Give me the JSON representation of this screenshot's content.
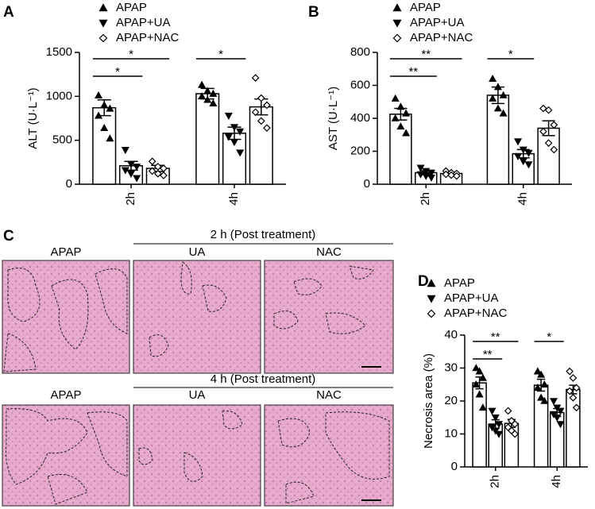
{
  "chart_data": [
    {
      "type": "bar",
      "panel": "A",
      "ylabel": "ALT (U·L⁻¹)",
      "categories": [
        "2h",
        "4h"
      ],
      "ylim": [
        0,
        1500
      ],
      "yticks": [
        0,
        500,
        1000,
        1500
      ],
      "color": "#000000",
      "series": [
        {
          "name": "APAP",
          "marker": "triangle-up",
          "values": [
            870,
            1030
          ],
          "errors": [
            90,
            60
          ],
          "points": [
            [
              1010,
              900,
              860,
              780,
              640,
              520
            ],
            [
              1130,
              1060,
              1030,
              1000,
              960,
              920
            ]
          ]
        },
        {
          "name": "APAP+UA",
          "marker": "triangle-down",
          "values": [
            210,
            580
          ],
          "errors": [
            50,
            70
          ],
          "points": [
            [
              390,
              230,
              200,
              160,
              120,
              70
            ],
            [
              780,
              650,
              600,
              540,
              480,
              360
            ]
          ]
        },
        {
          "name": "APAP+NAC",
          "marker": "diamond-open",
          "values": [
            180,
            880
          ],
          "errors": [
            35,
            90
          ],
          "points": [
            [
              260,
              200,
              180,
              150,
              120,
              100
            ],
            [
              1210,
              980,
              900,
              820,
              720,
              640
            ]
          ]
        }
      ],
      "significance": [
        {
          "category": 0,
          "series": [
            0,
            1
          ],
          "label": "*"
        },
        {
          "category": 0,
          "series": [
            0,
            2
          ],
          "label": "*"
        },
        {
          "category": 1,
          "series": [
            0,
            1
          ],
          "label": "*"
        }
      ]
    },
    {
      "type": "bar",
      "panel": "B",
      "ylabel": "AST (U·L⁻¹)",
      "categories": [
        "2h",
        "4h"
      ],
      "ylim": [
        0,
        800
      ],
      "yticks": [
        0,
        200,
        400,
        600,
        800
      ],
      "color": "#000000",
      "series": [
        {
          "name": "APAP",
          "marker": "triangle-up",
          "values": [
            425,
            540
          ],
          "errors": [
            35,
            50
          ],
          "points": [
            [
              520,
              470,
              430,
              400,
              350,
              310
            ],
            [
              640,
              590,
              540,
              520,
              460,
              430
            ]
          ]
        },
        {
          "name": "APAP+UA",
          "marker": "triangle-down",
          "values": [
            70,
            185
          ],
          "errors": [
            12,
            25
          ],
          "points": [
            [
              100,
              80,
              70,
              60,
              50,
              40
            ],
            [
              260,
              210,
              190,
              170,
              140,
              120
            ]
          ]
        },
        {
          "name": "APAP+NAC",
          "marker": "diamond-open",
          "values": [
            65,
            340
          ],
          "errors": [
            10,
            45
          ],
          "points": [
            [
              80,
              70,
              65,
              60,
              55,
              50
            ],
            [
              460,
              450,
              360,
              320,
              250,
              210
            ]
          ]
        }
      ],
      "significance": [
        {
          "category": 0,
          "series": [
            0,
            1
          ],
          "label": "**"
        },
        {
          "category": 0,
          "series": [
            0,
            2
          ],
          "label": "**"
        },
        {
          "category": 1,
          "series": [
            0,
            1
          ],
          "label": "*"
        }
      ]
    },
    {
      "type": "bar",
      "panel": "D",
      "ylabel": "Necrosis area (%)",
      "categories": [
        "2h",
        "4h"
      ],
      "ylim": [
        0,
        40
      ],
      "yticks": [
        0,
        10,
        20,
        30,
        40
      ],
      "color": "#000000",
      "series": [
        {
          "name": "APAP",
          "marker": "triangle-up",
          "values": [
            25.5,
            24.8
          ],
          "errors": [
            1.8,
            1.8
          ],
          "points": [
            [
              30,
              29,
              27,
              25,
              22,
              18
            ],
            [
              29,
              28,
              25,
              24,
              21,
              20
            ]
          ]
        },
        {
          "name": "APAP+UA",
          "marker": "triangle-down",
          "values": [
            13,
            16.5
          ],
          "errors": [
            1.3,
            1.2
          ],
          "points": [
            [
              17,
              15,
              13,
              12,
              11,
              10
            ],
            [
              20,
              18,
              17,
              16,
              15,
              13
            ]
          ]
        },
        {
          "name": "APAP+NAC",
          "marker": "diamond-open",
          "values": [
            13.2,
            23.5
          ],
          "errors": [
            1.2,
            1.3
          ],
          "points": [
            [
              17,
              14,
              13,
              12,
              11,
              10
            ],
            [
              29,
              27,
              24,
              23,
              21,
              18
            ]
          ]
        }
      ],
      "significance": [
        {
          "category": 0,
          "series": [
            0,
            1
          ],
          "label": "**"
        },
        {
          "category": 0,
          "series": [
            0,
            2
          ],
          "label": "**"
        },
        {
          "category": 1,
          "series": [
            0,
            1
          ],
          "label": "*"
        }
      ]
    }
  ],
  "histology": {
    "panel": "C",
    "rows": [
      {
        "header": "2 h  (Post treatment)",
        "labels": [
          "APAP",
          "UA",
          "NAC"
        ]
      },
      {
        "header": "4 h (Post treatment)",
        "labels": [
          "APAP",
          "UA",
          "NAC"
        ]
      }
    ]
  }
}
